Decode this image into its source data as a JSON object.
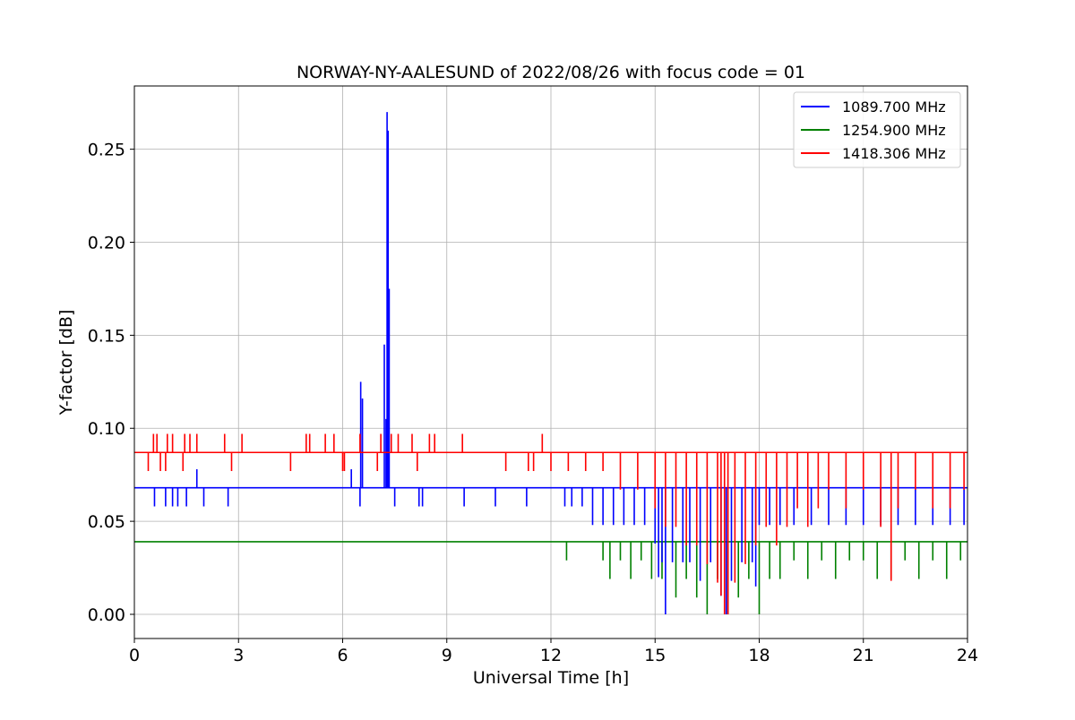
{
  "chart_data": {
    "type": "line",
    "title": "NORWAY-NY-AALESUND of 2022/08/26 with focus code = 01",
    "xlabel": "Universal Time [h]",
    "ylabel": "Y-factor [dB]",
    "xlim": [
      0,
      24
    ],
    "ylim": [
      -0.013,
      0.284
    ],
    "xticks": [
      0,
      3,
      6,
      9,
      12,
      15,
      18,
      21,
      24
    ],
    "xtick_labels": [
      "0",
      "3",
      "6",
      "9",
      "12",
      "15",
      "18",
      "21",
      "24"
    ],
    "yticks": [
      0.0,
      0.05,
      0.1,
      0.15,
      0.2,
      0.25
    ],
    "ytick_labels": [
      "0.00",
      "0.05",
      "0.10",
      "0.15",
      "0.20",
      "0.25"
    ],
    "grid": true,
    "legend_position": "top-right",
    "series": [
      {
        "name": "1089.700 MHz",
        "color": "#0000ff",
        "baseline": 0.068,
        "spikes": [
          [
            0.58,
            0.058
          ],
          [
            0.9,
            0.058
          ],
          [
            1.1,
            0.058
          ],
          [
            1.25,
            0.058
          ],
          [
            1.5,
            0.058
          ],
          [
            1.8,
            0.078
          ],
          [
            2.0,
            0.058
          ],
          [
            2.7,
            0.058
          ],
          [
            6.25,
            0.078
          ],
          [
            6.5,
            0.058
          ],
          [
            6.52,
            0.125
          ],
          [
            6.57,
            0.116
          ],
          [
            7.2,
            0.145
          ],
          [
            7.25,
            0.105
          ],
          [
            7.28,
            0.27
          ],
          [
            7.31,
            0.26
          ],
          [
            7.34,
            0.175
          ],
          [
            7.5,
            0.058
          ],
          [
            8.2,
            0.058
          ],
          [
            8.3,
            0.058
          ],
          [
            9.5,
            0.058
          ],
          [
            10.4,
            0.058
          ],
          [
            11.3,
            0.058
          ],
          [
            11.8,
            0.068
          ],
          [
            12.4,
            0.058
          ],
          [
            12.6,
            0.058
          ],
          [
            12.9,
            0.058
          ],
          [
            13.2,
            0.048
          ],
          [
            13.5,
            0.048
          ],
          [
            13.8,
            0.048
          ],
          [
            14.1,
            0.048
          ],
          [
            14.4,
            0.048
          ],
          [
            14.7,
            0.048
          ],
          [
            15.0,
            0.038
          ],
          [
            15.1,
            0.02
          ],
          [
            15.2,
            0.028
          ],
          [
            15.3,
            0.0
          ],
          [
            15.5,
            0.028
          ],
          [
            15.8,
            0.028
          ],
          [
            16.0,
            0.028
          ],
          [
            16.3,
            0.018
          ],
          [
            16.6,
            0.028
          ],
          [
            16.9,
            0.01
          ],
          [
            17.05,
            0.0
          ],
          [
            17.2,
            0.018
          ],
          [
            17.5,
            0.028
          ],
          [
            17.8,
            0.028
          ],
          [
            17.9,
            0.015
          ],
          [
            18.0,
            0.048
          ],
          [
            18.3,
            0.048
          ],
          [
            18.6,
            0.048
          ],
          [
            19.0,
            0.048
          ],
          [
            19.5,
            0.048
          ],
          [
            20.0,
            0.048
          ],
          [
            20.5,
            0.048
          ],
          [
            21.0,
            0.048
          ],
          [
            21.5,
            0.048
          ],
          [
            22.0,
            0.048
          ],
          [
            22.5,
            0.048
          ],
          [
            23.0,
            0.048
          ],
          [
            23.5,
            0.048
          ],
          [
            23.9,
            0.048
          ]
        ]
      },
      {
        "name": "1254.900 MHz",
        "color": "#008000",
        "baseline": 0.039,
        "spikes": [
          [
            12.45,
            0.029
          ],
          [
            13.5,
            0.029
          ],
          [
            13.7,
            0.019
          ],
          [
            14.0,
            0.029
          ],
          [
            14.3,
            0.019
          ],
          [
            14.6,
            0.029
          ],
          [
            14.9,
            0.019
          ],
          [
            15.2,
            0.019
          ],
          [
            15.6,
            0.009
          ],
          [
            15.9,
            0.019
          ],
          [
            16.2,
            0.009
          ],
          [
            16.5,
            0.0
          ],
          [
            16.8,
            0.019
          ],
          [
            17.1,
            0.0
          ],
          [
            17.4,
            0.009
          ],
          [
            17.7,
            0.019
          ],
          [
            18.0,
            0.0
          ],
          [
            18.3,
            0.019
          ],
          [
            18.6,
            0.019
          ],
          [
            19.0,
            0.029
          ],
          [
            19.4,
            0.019
          ],
          [
            19.8,
            0.029
          ],
          [
            20.2,
            0.019
          ],
          [
            20.6,
            0.029
          ],
          [
            21.0,
            0.029
          ],
          [
            21.4,
            0.019
          ],
          [
            21.8,
            0.019
          ],
          [
            22.2,
            0.029
          ],
          [
            22.6,
            0.019
          ],
          [
            23.0,
            0.029
          ],
          [
            23.4,
            0.019
          ],
          [
            23.8,
            0.029
          ]
        ]
      },
      {
        "name": "1418.306 MHz",
        "color": "#ff0000",
        "baseline": 0.087,
        "spikes": [
          [
            0.4,
            0.077
          ],
          [
            0.55,
            0.097
          ],
          [
            0.65,
            0.097
          ],
          [
            0.75,
            0.077
          ],
          [
            0.9,
            0.077
          ],
          [
            0.95,
            0.097
          ],
          [
            1.1,
            0.097
          ],
          [
            1.4,
            0.077
          ],
          [
            1.45,
            0.097
          ],
          [
            1.6,
            0.097
          ],
          [
            1.8,
            0.097
          ],
          [
            2.6,
            0.097
          ],
          [
            2.8,
            0.077
          ],
          [
            3.1,
            0.097
          ],
          [
            4.5,
            0.077
          ],
          [
            4.95,
            0.097
          ],
          [
            5.05,
            0.097
          ],
          [
            5.5,
            0.097
          ],
          [
            5.75,
            0.097
          ],
          [
            6.0,
            0.077
          ],
          [
            6.05,
            0.077
          ],
          [
            6.5,
            0.097
          ],
          [
            7.0,
            0.077
          ],
          [
            7.1,
            0.097
          ],
          [
            7.4,
            0.097
          ],
          [
            7.6,
            0.097
          ],
          [
            8.0,
            0.097
          ],
          [
            8.15,
            0.077
          ],
          [
            8.5,
            0.097
          ],
          [
            8.65,
            0.097
          ],
          [
            9.45,
            0.097
          ],
          [
            10.7,
            0.077
          ],
          [
            11.35,
            0.077
          ],
          [
            11.5,
            0.077
          ],
          [
            11.75,
            0.097
          ],
          [
            12.0,
            0.077
          ],
          [
            12.5,
            0.077
          ],
          [
            13.0,
            0.077
          ],
          [
            13.5,
            0.077
          ],
          [
            14.0,
            0.067
          ],
          [
            14.5,
            0.067
          ],
          [
            15.0,
            0.057
          ],
          [
            15.3,
            0.047
          ],
          [
            15.6,
            0.047
          ],
          [
            15.9,
            0.037
          ],
          [
            16.2,
            0.037
          ],
          [
            16.5,
            0.027
          ],
          [
            16.8,
            0.017
          ],
          [
            16.9,
            0.01
          ],
          [
            17.0,
            0.0
          ],
          [
            17.1,
            0.0
          ],
          [
            17.3,
            0.017
          ],
          [
            17.6,
            0.027
          ],
          [
            17.9,
            0.037
          ],
          [
            18.2,
            0.047
          ],
          [
            18.5,
            0.037
          ],
          [
            18.8,
            0.047
          ],
          [
            19.1,
            0.057
          ],
          [
            19.4,
            0.047
          ],
          [
            19.7,
            0.057
          ],
          [
            20.0,
            0.067
          ],
          [
            20.5,
            0.057
          ],
          [
            21.0,
            0.067
          ],
          [
            21.5,
            0.047
          ],
          [
            21.8,
            0.018
          ],
          [
            22.0,
            0.057
          ],
          [
            22.5,
            0.067
          ],
          [
            23.0,
            0.057
          ],
          [
            23.5,
            0.057
          ],
          [
            23.9,
            0.067
          ]
        ]
      }
    ]
  }
}
